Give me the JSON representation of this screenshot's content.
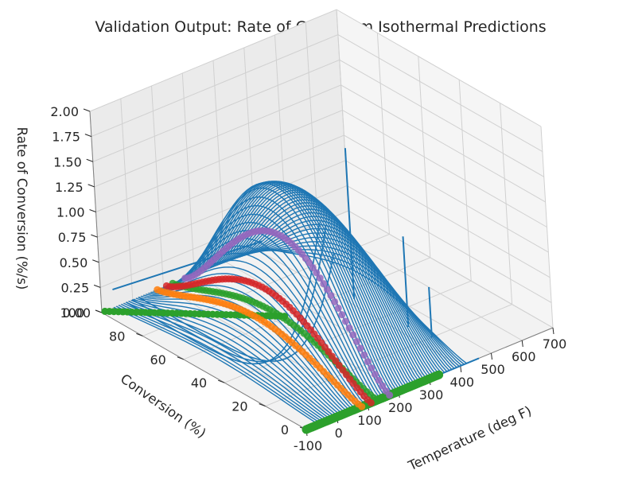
{
  "chart_data": {
    "type": "surface-3d",
    "title": "Validation Output: Rate of Cure From Isothermal Predictions",
    "xlabel": "Temperature (deg F)",
    "ylabel": "Conversion (%)",
    "zlabel": "Rate of Conversion (%/s)",
    "xlim": [
      -100,
      700
    ],
    "ylim": [
      0,
      100
    ],
    "zlim": [
      0,
      2
    ],
    "x_ticks": [
      "-100",
      "0",
      "100",
      "200",
      "300",
      "400",
      "500",
      "600",
      "700"
    ],
    "x_tick_values": [
      -100,
      0,
      100,
      200,
      300,
      400,
      500,
      600,
      700
    ],
    "y_ticks": [
      "0",
      "20",
      "40",
      "60",
      "80",
      "100"
    ],
    "y_tick_values": [
      0,
      20,
      40,
      60,
      80,
      100
    ],
    "z_ticks": [
      "0.00",
      "0.25",
      "0.50",
      "0.75",
      "1.00",
      "1.25",
      "1.50",
      "1.75",
      "2.00"
    ],
    "z_tick_values": [
      0,
      0.25,
      0.5,
      0.75,
      1.0,
      1.25,
      1.5,
      1.75,
      2.0
    ],
    "grid": true,
    "colors": {
      "blue": "#1f77b4",
      "orange": "#ff7f0e",
      "green": "#2ca02c",
      "red": "#d62728",
      "purple": "#9467bd"
    },
    "series": [
      {
        "style": "fan",
        "color": "#1f77b4",
        "x_range": [
          -60,
          420
        ],
        "low_x_spikes": [
          {
            "x": -20,
            "peak": 1.95
          },
          {
            "x": 0,
            "peak": 1.9
          },
          {
            "x": 20,
            "peak": 1.6
          }
        ],
        "dome_peak": 1.5,
        "dome_peak_x": 160
      },
      {
        "style": "vertical-line",
        "color": "#1f77b4",
        "x": 420,
        "y": 55,
        "peak": 1.5
      },
      {
        "style": "vertical-line",
        "color": "#1f77b4",
        "x": 430,
        "y": 30,
        "peak": 0.9
      },
      {
        "style": "vertical-line",
        "color": "#1f77b4",
        "x": 440,
        "y": 20,
        "peak": 0.5
      },
      {
        "style": "base-line",
        "color": "#1f77b4",
        "x": [
          300,
          460
        ],
        "y": 0,
        "z": 0
      },
      {
        "style": "dots-diagonal",
        "color": "#2ca02c",
        "x": [
          -90,
          40
        ],
        "y": [
          100,
          30
        ],
        "z": [
          0,
          0.6
        ]
      },
      {
        "style": "dots-arc",
        "color": "#2ca02c",
        "x": 130,
        "peak": 0.3
      },
      {
        "style": "dots-floor",
        "color": "#2ca02c",
        "x": [
          -100,
          330
        ],
        "y": 0,
        "z": 0
      },
      {
        "style": "dots-arc",
        "color": "#9467bd",
        "x": 170,
        "peak": 1.0
      },
      {
        "style": "dots-arc",
        "color": "#d62728",
        "x": 110,
        "peak": 0.55
      },
      {
        "style": "dots-arc",
        "color": "#ff7f0e",
        "x": 80,
        "peak": 0.3
      }
    ]
  }
}
